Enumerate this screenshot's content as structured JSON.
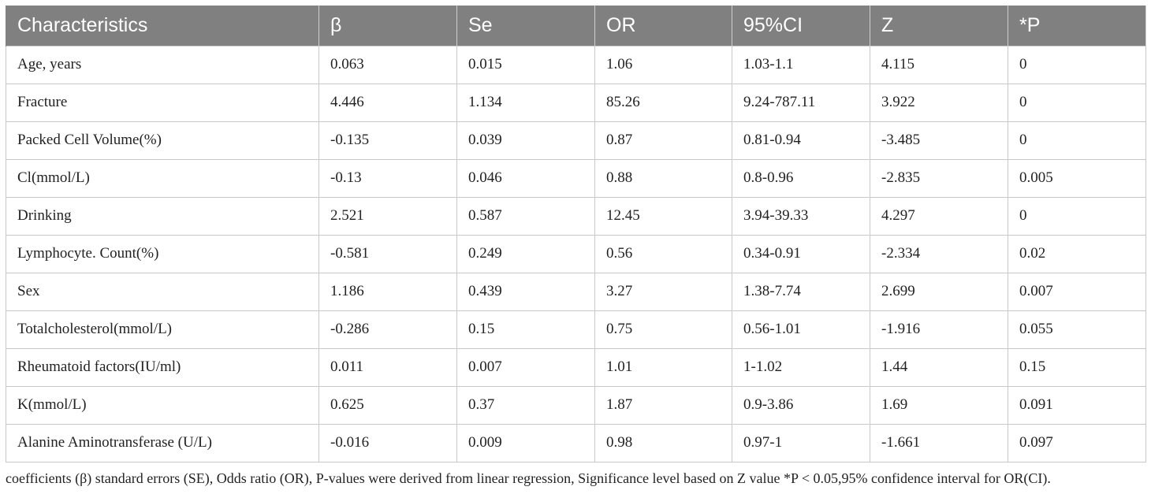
{
  "table": {
    "headers": [
      "Characteristics",
      "β",
      "Se",
      "OR",
      "95%CI",
      "Z",
      "*P"
    ],
    "rows": [
      [
        "Age, years",
        "0.063",
        "0.015",
        "1.06",
        "1.03-1.1",
        "4.115",
        "0"
      ],
      [
        "Fracture",
        "4.446",
        "1.134",
        "85.26",
        "9.24-787.11",
        "3.922",
        "0"
      ],
      [
        "Packed Cell Volume(%)",
        "-0.135",
        "0.039",
        "0.87",
        "0.81-0.94",
        "-3.485",
        "0"
      ],
      [
        "Cl(mmol/L)",
        "-0.13",
        "0.046",
        "0.88",
        "0.8-0.96",
        "-2.835",
        "0.005"
      ],
      [
        "Drinking",
        "2.521",
        "0.587",
        "12.45",
        "3.94-39.33",
        "4.297",
        "0"
      ],
      [
        "Lymphocyte. Count(%)",
        "-0.581",
        "0.249",
        "0.56",
        "0.34-0.91",
        "-2.334",
        "0.02"
      ],
      [
        "Sex",
        "1.186",
        "0.439",
        "3.27",
        "1.38-7.74",
        "2.699",
        "0.007"
      ],
      [
        "Totalcholesterol(mmol/L)",
        "-0.286",
        "0.15",
        "0.75",
        "0.56-1.01",
        "-1.916",
        "0.055"
      ],
      [
        "Rheumatoid factors(IU/ml)",
        "0.011",
        "0.007",
        "1.01",
        "1-1.02",
        "1.44",
        "0.15"
      ],
      [
        "K(mmol/L)",
        "0.625",
        "0.37",
        "1.87",
        "0.9-3.86",
        "1.69",
        "0.091"
      ],
      [
        "Alanine Aminotransferase (U/L)",
        "-0.016",
        "0.009",
        "0.98",
        "0.97-1",
        "-1.661",
        "0.097"
      ]
    ]
  },
  "footnote": "coefficients (β) standard errors (SE), Odds ratio (OR), P-values were derived from linear regression, Significance level based on Z value *P < 0.05,95% confidence interval for OR(CI).",
  "colors": {
    "header_bg": "#808080",
    "header_text": "#ffffff",
    "grid": "#c8c8c8"
  }
}
